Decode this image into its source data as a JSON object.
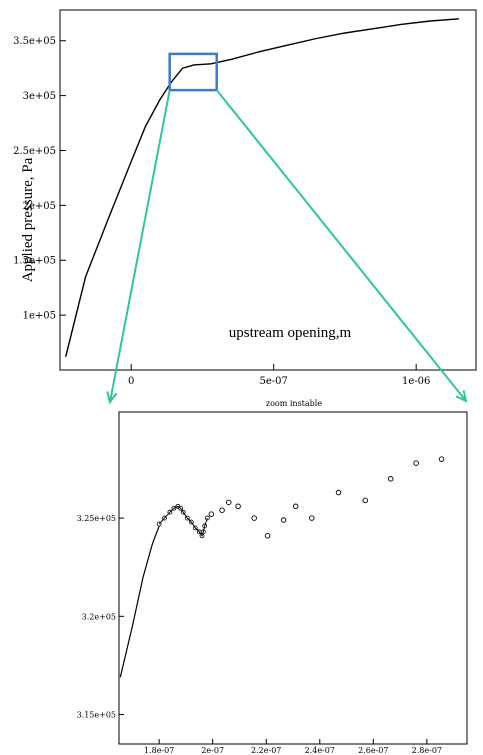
{
  "chart_data": [
    {
      "type": "line",
      "ylabel": "Applied pressure, Pa",
      "annotation": "upstream opening,m",
      "xlim": [
        -2.5e-07,
        1.21e-06
      ],
      "ylim": [
        50000.0,
        378000.0
      ],
      "x_ticks": [
        {
          "value": 0,
          "label": "0"
        },
        {
          "value": 5e-07,
          "label": "5e-07"
        },
        {
          "value": 1e-06,
          "label": "1e-06"
        }
      ],
      "y_ticks": [
        {
          "value": 100000,
          "label": "1e+05"
        },
        {
          "value": 150000,
          "label": "1.5e+05"
        },
        {
          "value": 200000,
          "label": "2e+05"
        },
        {
          "value": 250000,
          "label": "2.5e+05"
        },
        {
          "value": 300000,
          "label": "3e+05"
        },
        {
          "value": 350000,
          "label": "3.5e+05"
        }
      ],
      "series": [
        {
          "x": [
            -2.3e-07,
            -1.6e-07,
            -8e-08,
            0,
            5e-08,
            1e-07,
            1.4e-07,
            1.8e-07,
            2.2e-07,
            2.8e-07,
            3.5e-07,
            4.5e-07,
            5.5e-07,
            6.5e-07,
            7.5e-07,
            8.5e-07,
            9.5e-07,
            1.05e-06,
            1.15e-06
          ],
          "y": [
            62000,
            135000,
            188000,
            240000,
            272000,
            296000,
            312000,
            325000,
            328000,
            329000,
            333000,
            340000,
            346000,
            352000,
            357000,
            361000,
            365000,
            368000,
            370000
          ]
        }
      ],
      "zoom_box": {
        "x": [
          1.35e-07,
          3e-07
        ],
        "y": [
          305000.0,
          338000.0
        ]
      },
      "zoom_box_color": "#3b7bc8",
      "zoom_arrow_color": "#2ec6a0"
    },
    {
      "type": "scatter",
      "title": "zoom instable",
      "xlim": [
        1.65e-07,
        2.95e-07
      ],
      "ylim": [
        313500.0,
        330400.0
      ],
      "x_ticks": [
        {
          "value": 1.8e-07,
          "label": "1.8e-07"
        },
        {
          "value": 2e-07,
          "label": "2e-07"
        },
        {
          "value": 2.2e-07,
          "label": "2.2e-07"
        },
        {
          "value": 2.4e-07,
          "label": "2.4e-07"
        },
        {
          "value": 2.6e-07,
          "label": "2.6e-07"
        },
        {
          "value": 2.8e-07,
          "label": "2.8e-07"
        }
      ],
      "y_ticks": [
        {
          "value": 315000,
          "label": "3.15e+05"
        },
        {
          "value": 320000,
          "label": "3.2e+05"
        },
        {
          "value": 325000,
          "label": "3.25e+05"
        }
      ],
      "line_series": {
        "x": [
          1.655e-07,
          1.7e-07,
          1.74e-07,
          1.775e-07,
          1.8e-07
        ],
        "y": [
          316900,
          319500,
          322000,
          323700,
          324600
        ]
      },
      "dense_points": {
        "x": [
          1.8e-07,
          1.82e-07,
          1.84e-07,
          1.855e-07,
          1.87e-07,
          1.88e-07,
          1.89e-07,
          1.905e-07,
          1.92e-07,
          1.935e-07,
          1.95e-07,
          1.96e-07,
          1.965e-07,
          1.97e-07,
          1.98e-07
        ],
        "y": [
          324700,
          325000,
          325300,
          325500,
          325600,
          325500,
          325300,
          325000,
          324800,
          324500,
          324300,
          324100,
          324300,
          324600,
          325000
        ]
      },
      "points": {
        "x": [
          1.995e-07,
          2.035e-07,
          2.06e-07,
          2.095e-07,
          2.155e-07,
          2.205e-07,
          2.265e-07,
          2.31e-07,
          2.37e-07,
          2.47e-07,
          2.57e-07,
          2.665e-07,
          2.76e-07,
          2.855e-07
        ],
        "y": [
          325200,
          325400,
          325800,
          325600,
          325000,
          324100,
          324900,
          325600,
          325000,
          326300,
          325900,
          327000,
          327800,
          328000
        ]
      }
    }
  ]
}
